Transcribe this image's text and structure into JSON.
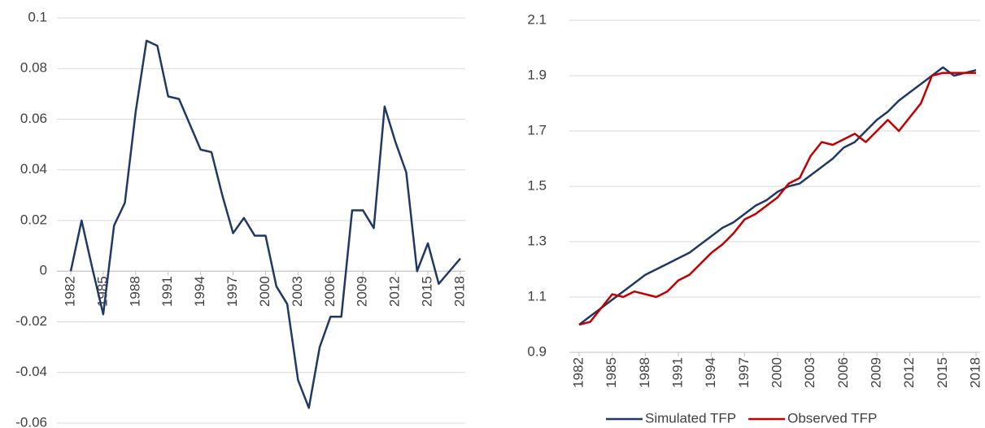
{
  "chart_data": [
    {
      "type": "line",
      "x": [
        1982,
        1983,
        1984,
        1985,
        1986,
        1987,
        1988,
        1989,
        1990,
        1991,
        1992,
        1993,
        1994,
        1995,
        1996,
        1997,
        1998,
        1999,
        2000,
        2001,
        2002,
        2003,
        2004,
        2005,
        2006,
        2007,
        2008,
        2009,
        2010,
        2011,
        2012,
        2013,
        2014,
        2015,
        2016,
        2017,
        2018
      ],
      "values": [
        0,
        0.02,
        0.001,
        -0.017,
        0.018,
        0.027,
        0.063,
        0.091,
        0.089,
        0.069,
        0.068,
        0.058,
        0.048,
        0.047,
        0.03,
        0.015,
        0.021,
        0.014,
        0.014,
        -0.006,
        -0.013,
        -0.043,
        -0.054,
        -0.03,
        -0.018,
        -0.018,
        0.024,
        0.024,
        0.017,
        0.065,
        0.051,
        0.039,
        0.0,
        0.011,
        -0.005,
        0.0,
        0.005
      ],
      "color": "#203864",
      "xlim": [
        1982,
        2018
      ],
      "xticks": [
        1982,
        1985,
        1988,
        1991,
        1994,
        1997,
        2000,
        2003,
        2006,
        2009,
        2012,
        2015,
        2018
      ],
      "ylim": [
        -0.06,
        0.1
      ],
      "yticks": [
        -0.06,
        -0.04,
        -0.02,
        0,
        0.02,
        0.04,
        0.06,
        0.08,
        0.1
      ],
      "grid": true
    },
    {
      "type": "line",
      "x": [
        1982,
        1983,
        1984,
        1985,
        1986,
        1987,
        1988,
        1989,
        1990,
        1991,
        1992,
        1993,
        1994,
        1995,
        1996,
        1997,
        1998,
        1999,
        2000,
        2001,
        2002,
        2003,
        2004,
        2005,
        2006,
        2007,
        2008,
        2009,
        2010,
        2011,
        2012,
        2013,
        2014,
        2015,
        2016,
        2017,
        2018
      ],
      "series": [
        {
          "name": "Simulated TFP",
          "color": "#203864",
          "values": [
            1.0,
            1.03,
            1.06,
            1.09,
            1.12,
            1.15,
            1.18,
            1.2,
            1.22,
            1.24,
            1.26,
            1.29,
            1.32,
            1.35,
            1.37,
            1.4,
            1.43,
            1.45,
            1.48,
            1.5,
            1.51,
            1.54,
            1.57,
            1.6,
            1.64,
            1.66,
            1.7,
            1.74,
            1.77,
            1.81,
            1.84,
            1.87,
            1.9,
            1.93,
            1.9,
            1.91,
            1.92
          ]
        },
        {
          "name": "Observed TFP",
          "color": "#c00000",
          "values": [
            1.0,
            1.01,
            1.06,
            1.11,
            1.1,
            1.12,
            1.11,
            1.1,
            1.12,
            1.16,
            1.18,
            1.22,
            1.26,
            1.29,
            1.33,
            1.38,
            1.4,
            1.43,
            1.46,
            1.51,
            1.53,
            1.61,
            1.66,
            1.65,
            1.67,
            1.69,
            1.66,
            1.7,
            1.74,
            1.7,
            1.75,
            1.8,
            1.9,
            1.91,
            1.91,
            1.91,
            1.91
          ]
        }
      ],
      "xlim": [
        1982,
        2018
      ],
      "xticks": [
        1982,
        1985,
        1988,
        1991,
        1994,
        1997,
        2000,
        2003,
        2006,
        2009,
        2012,
        2015,
        2018
      ],
      "ylim": [
        0.9,
        2.1
      ],
      "yticks": [
        0.9,
        1.1,
        1.3,
        1.5,
        1.7,
        1.9,
        2.1
      ],
      "grid": true,
      "legend": "bottom"
    }
  ]
}
